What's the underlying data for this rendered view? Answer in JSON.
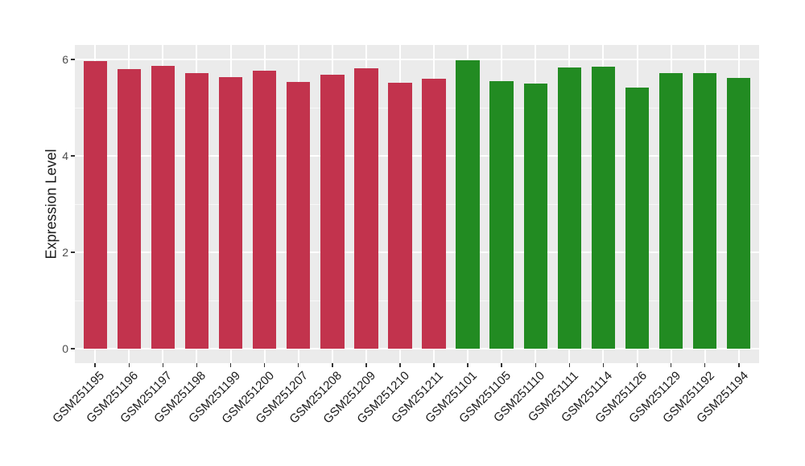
{
  "chart_data": {
    "type": "bar",
    "title": "",
    "xlabel": "",
    "ylabel": "Expression Level",
    "ylim": [
      -0.3,
      6.3
    ],
    "y_major_ticks": [
      0,
      2,
      4,
      6
    ],
    "y_minor_ticks": [
      1,
      3,
      5
    ],
    "grid": "on",
    "legend_position": "none",
    "panel_background": "#EBEBEB",
    "grid_color": "#FFFFFF",
    "tick_color": "#333333",
    "axis_text_color": "#4D4D4D",
    "x_axis_text_color": "#1A1A1A",
    "palette": {
      "red": "#C2334D",
      "green": "#228B22"
    },
    "categories": [
      "GSM251195",
      "GSM251196",
      "GSM251197",
      "GSM251198",
      "GSM251199",
      "GSM251200",
      "GSM251207",
      "GSM251208",
      "GSM251209",
      "GSM251210",
      "GSM251211",
      "GSM251101",
      "GSM251105",
      "GSM251110",
      "GSM251111",
      "GSM251114",
      "GSM251126",
      "GSM251129",
      "GSM251192",
      "GSM251194"
    ],
    "bars": [
      {
        "label": "GSM251195",
        "value": 5.97,
        "color": "red"
      },
      {
        "label": "GSM251196",
        "value": 5.8,
        "color": "red"
      },
      {
        "label": "GSM251197",
        "value": 5.87,
        "color": "red"
      },
      {
        "label": "GSM251198",
        "value": 5.71,
        "color": "red"
      },
      {
        "label": "GSM251199",
        "value": 5.64,
        "color": "red"
      },
      {
        "label": "GSM251200",
        "value": 5.77,
        "color": "red"
      },
      {
        "label": "GSM251207",
        "value": 5.53,
        "color": "red"
      },
      {
        "label": "GSM251208",
        "value": 5.69,
        "color": "red"
      },
      {
        "label": "GSM251209",
        "value": 5.82,
        "color": "red"
      },
      {
        "label": "GSM251210",
        "value": 5.52,
        "color": "red"
      },
      {
        "label": "GSM251211",
        "value": 5.6,
        "color": "red"
      },
      {
        "label": "GSM251101",
        "value": 5.99,
        "color": "green"
      },
      {
        "label": "GSM251105",
        "value": 5.55,
        "color": "green"
      },
      {
        "label": "GSM251110",
        "value": 5.5,
        "color": "green"
      },
      {
        "label": "GSM251111",
        "value": 5.84,
        "color": "green"
      },
      {
        "label": "GSM251114",
        "value": 5.85,
        "color": "green"
      },
      {
        "label": "GSM251126",
        "value": 5.42,
        "color": "green"
      },
      {
        "label": "GSM251129",
        "value": 5.71,
        "color": "green"
      },
      {
        "label": "GSM251192",
        "value": 5.71,
        "color": "green"
      },
      {
        "label": "GSM251194",
        "value": 5.61,
        "color": "green"
      }
    ]
  }
}
